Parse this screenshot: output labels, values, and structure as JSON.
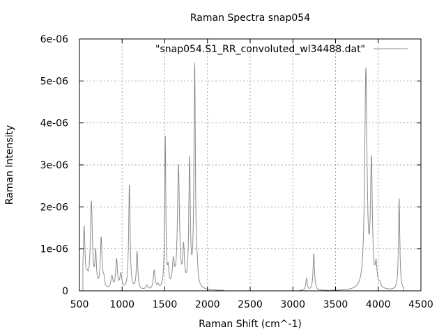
{
  "chart_data": {
    "type": "line",
    "title": "Raman Spectra snap054",
    "xlabel": "Raman Shift (cm^-1)",
    "ylabel": "Raman Intensity",
    "xlim": [
      500,
      4500
    ],
    "ylim": [
      0,
      6e-06
    ],
    "xticks": [
      500,
      1000,
      1500,
      2000,
      2500,
      3000,
      3500,
      4000,
      4500
    ],
    "yticks": [
      0,
      1e-06,
      2e-06,
      3e-06,
      4e-06,
      5e-06,
      6e-06
    ],
    "xtick_labels": [
      "500",
      "1000",
      "1500",
      "2000",
      "2500",
      "3000",
      "3500",
      "4000",
      "4500"
    ],
    "ytick_labels": [
      "0",
      "1e-06",
      "2e-06",
      "3e-06",
      "4e-06",
      "5e-06",
      "6e-06"
    ],
    "grid": true,
    "legend_position": "top-right",
    "series": [
      {
        "name": "\"snap054.S1_RR_convoluted_wl34488.dat\"",
        "color": "#8c8c8c",
        "peaks": [
          {
            "x": 555,
            "h": 1.45e-06,
            "w": 12
          },
          {
            "x": 590,
            "h": 2e-07,
            "w": 14
          },
          {
            "x": 640,
            "h": 2.05e-06,
            "w": 14
          },
          {
            "x": 690,
            "h": 8e-07,
            "w": 10
          },
          {
            "x": 755,
            "h": 1.2e-06,
            "w": 12
          },
          {
            "x": 785,
            "h": 2e-07,
            "w": 10
          },
          {
            "x": 880,
            "h": 3e-07,
            "w": 14
          },
          {
            "x": 935,
            "h": 7e-07,
            "w": 12
          },
          {
            "x": 985,
            "h": 3.5e-07,
            "w": 14
          },
          {
            "x": 1085,
            "h": 2.5e-06,
            "w": 10
          },
          {
            "x": 1175,
            "h": 9e-07,
            "w": 10
          },
          {
            "x": 1290,
            "h": 1e-07,
            "w": 14
          },
          {
            "x": 1375,
            "h": 4.5e-07,
            "w": 12
          },
          {
            "x": 1420,
            "h": 1e-07,
            "w": 12
          },
          {
            "x": 1505,
            "h": 3.65e-06,
            "w": 8
          },
          {
            "x": 1540,
            "h": 4e-07,
            "w": 10
          },
          {
            "x": 1600,
            "h": 6e-07,
            "w": 14
          },
          {
            "x": 1660,
            "h": 2.9e-06,
            "w": 14
          },
          {
            "x": 1720,
            "h": 9e-07,
            "w": 12
          },
          {
            "x": 1790,
            "h": 3e-06,
            "w": 10
          },
          {
            "x": 1850,
            "h": 5.3e-06,
            "w": 10
          },
          {
            "x": 1880,
            "h": 3e-07,
            "w": 8
          },
          {
            "x": 3160,
            "h": 2.8e-07,
            "w": 10
          },
          {
            "x": 3245,
            "h": 8.8e-07,
            "w": 10
          },
          {
            "x": 3855,
            "h": 5.2e-06,
            "w": 16
          },
          {
            "x": 3920,
            "h": 2.9e-06,
            "w": 13
          },
          {
            "x": 3975,
            "h": 5e-07,
            "w": 13
          },
          {
            "x": 4020,
            "h": 1e-07,
            "w": 14
          },
          {
            "x": 4245,
            "h": 2.2e-06,
            "w": 9
          }
        ]
      }
    ]
  }
}
